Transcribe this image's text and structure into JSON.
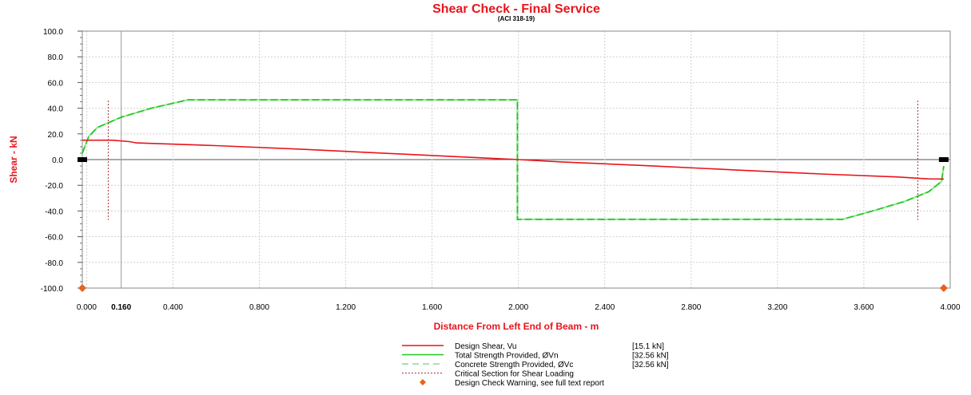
{
  "chart_data": {
    "type": "line",
    "title": "Shear Check - Final Service",
    "subtitle": "(ACI 318-19)",
    "xlabel": "Distance From Left End of Beam - m",
    "ylabel": "Shear - kN",
    "xlim": [
      -0.02,
      4.0
    ],
    "ylim": [
      -100,
      100
    ],
    "grid": true,
    "y_ticks": [
      "100.0",
      "80.0",
      "60.0",
      "40.0",
      "20.0",
      "0.0",
      "-20.0",
      "-40.0",
      "-60.0",
      "-80.0",
      "-100.0"
    ],
    "y_tick_values": [
      100,
      80,
      60,
      40,
      20,
      0,
      -20,
      -40,
      -60,
      -80,
      -100
    ],
    "x_ticks": [
      "0.000",
      "0.400",
      "0.800",
      "1.200",
      "1.600",
      "2.000",
      "2.400",
      "2.800",
      "3.200",
      "3.600",
      "4.000"
    ],
    "x_tick_values": [
      0,
      0.4,
      0.8,
      1.2,
      1.6,
      2.0,
      2.4,
      2.8,
      3.2,
      3.6,
      4.0
    ],
    "marker_tick": {
      "label": "0.160",
      "x": 0.16
    },
    "series": [
      {
        "name": "Design Shear, Vu",
        "value_label": "[15.1  kN]",
        "color": "#e8141b",
        "style": "solid",
        "x": [
          -0.02,
          0.0,
          0.12,
          0.2,
          0.23,
          0.6,
          1.0,
          1.4,
          1.8,
          2.0,
          2.2,
          2.6,
          3.0,
          3.4,
          3.75,
          3.9,
          3.97
        ],
        "y": [
          15.1,
          15.1,
          15.1,
          14.0,
          13.0,
          10.9,
          8.0,
          4.8,
          1.6,
          0.0,
          -1.8,
          -4.8,
          -8.0,
          -11.2,
          -13.5,
          -15.0,
          -15.1
        ]
      },
      {
        "name": "Total Strength Provided, ØVn",
        "value_label": "[32.56  kN]",
        "color": "#1ec81e",
        "style": "solid",
        "x": [
          -0.02,
          0.01,
          0.05,
          0.16,
          0.3,
          0.47,
          1.0,
          1.5,
          1.995,
          1.995,
          2.5,
          3.0,
          3.5,
          3.64,
          3.79,
          3.9,
          3.96,
          3.97
        ],
        "y": [
          5.0,
          18.0,
          25.0,
          33.0,
          40.0,
          46.5,
          46.5,
          46.5,
          46.5,
          -46.5,
          -46.5,
          -46.5,
          -46.5,
          -40.0,
          -32.5,
          -25.0,
          -17.0,
          -5.0
        ]
      },
      {
        "name": "Concrete Strength Provided, ØVc",
        "value_label": "[32.56  kN]",
        "color": "#1ec81e",
        "style": "dashed",
        "x": [
          -0.02,
          0.01,
          0.05,
          0.16,
          0.3,
          0.47,
          1.0,
          1.5,
          1.995,
          1.995,
          2.5,
          3.0,
          3.5,
          3.64,
          3.79,
          3.9,
          3.96,
          3.97
        ],
        "y": [
          5.0,
          18.0,
          25.0,
          33.0,
          40.0,
          46.5,
          46.5,
          46.5,
          46.5,
          -46.5,
          -46.5,
          -46.5,
          -46.5,
          -40.0,
          -32.5,
          -25.0,
          -17.0,
          -5.0
        ]
      }
    ],
    "critical_sections": {
      "name": "Critical Section for Shear Loading",
      "color": "#b03030",
      "x": [
        0.1,
        3.85
      ],
      "y_range": [
        -47,
        46
      ]
    },
    "warnings": {
      "name": "Design Check Warning, see full text report",
      "color": "#e8631b",
      "points": [
        {
          "x": -0.02,
          "y": -100
        },
        {
          "x": 3.97,
          "y": -100
        }
      ]
    },
    "supports": {
      "x": [
        -0.02,
        3.97
      ],
      "color": "#000000"
    },
    "highlight_line": {
      "x": 0.16,
      "color": "#999999"
    }
  }
}
